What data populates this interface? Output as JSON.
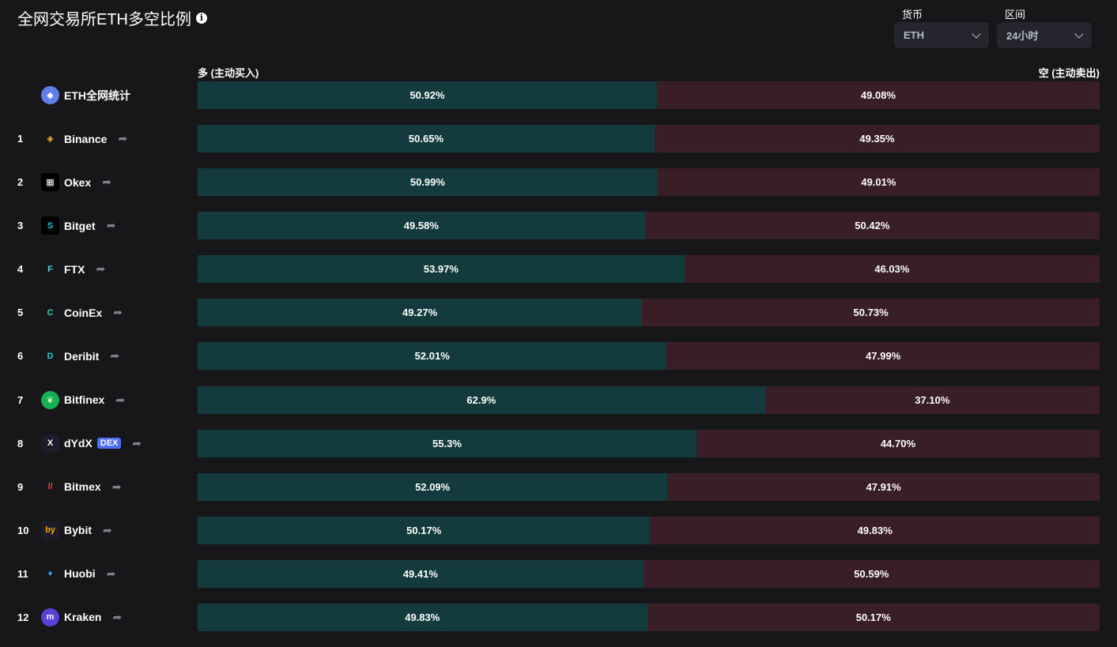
{
  "page": {
    "title": "全网交易所ETH多空比例",
    "info_icon": "info-icon"
  },
  "filters": {
    "coin": {
      "label": "货币",
      "value": "ETH"
    },
    "period": {
      "label": "区间",
      "value": "24小时"
    }
  },
  "header": {
    "long_label": "多 (主动买入)",
    "short_label": "空 (主动卖出)"
  },
  "colors": {
    "long_bar": "#133b3d",
    "short_bar": "#391d27",
    "background": "#17171a"
  },
  "rows": [
    {
      "rank": "",
      "name": "ETH全网统计",
      "icon": "eth-icon",
      "long": 50.92,
      "long_text": "50.92%",
      "short_text": "49.08%",
      "share": false,
      "dex": ""
    },
    {
      "rank": "1",
      "name": "Binance",
      "icon": "binance-icon",
      "long": 50.65,
      "long_text": "50.65%",
      "short_text": "49.35%",
      "share": true,
      "dex": ""
    },
    {
      "rank": "2",
      "name": "Okex",
      "icon": "okex-icon",
      "long": 50.99,
      "long_text": "50.99%",
      "short_text": "49.01%",
      "share": true,
      "dex": ""
    },
    {
      "rank": "3",
      "name": "Bitget",
      "icon": "bitget-icon",
      "long": 49.58,
      "long_text": "49.58%",
      "short_text": "50.42%",
      "share": true,
      "dex": ""
    },
    {
      "rank": "4",
      "name": "FTX",
      "icon": "ftx-icon",
      "long": 53.97,
      "long_text": "53.97%",
      "short_text": "46.03%",
      "share": true,
      "dex": ""
    },
    {
      "rank": "5",
      "name": "CoinEx",
      "icon": "coinex-icon",
      "long": 49.27,
      "long_text": "49.27%",
      "short_text": "50.73%",
      "share": true,
      "dex": ""
    },
    {
      "rank": "6",
      "name": "Deribit",
      "icon": "deribit-icon",
      "long": 52.01,
      "long_text": "52.01%",
      "short_text": "47.99%",
      "share": true,
      "dex": ""
    },
    {
      "rank": "7",
      "name": "Bitfinex",
      "icon": "bitfinex-icon",
      "long": 62.9,
      "long_text": "62.9%",
      "short_text": "37.10%",
      "share": true,
      "dex": ""
    },
    {
      "rank": "8",
      "name": "dYdX",
      "icon": "dydx-icon",
      "long": 55.3,
      "long_text": "55.3%",
      "short_text": "44.70%",
      "share": true,
      "dex": "DEX"
    },
    {
      "rank": "9",
      "name": "Bitmex",
      "icon": "bitmex-icon",
      "long": 52.09,
      "long_text": "52.09%",
      "short_text": "47.91%",
      "share": true,
      "dex": ""
    },
    {
      "rank": "10",
      "name": "Bybit",
      "icon": "bybit-icon",
      "long": 50.17,
      "long_text": "50.17%",
      "short_text": "49.83%",
      "share": true,
      "dex": ""
    },
    {
      "rank": "11",
      "name": "Huobi",
      "icon": "huobi-icon",
      "long": 49.41,
      "long_text": "49.41%",
      "short_text": "50.59%",
      "share": true,
      "dex": ""
    },
    {
      "rank": "12",
      "name": "Kraken",
      "icon": "kraken-icon",
      "long": 49.83,
      "long_text": "49.83%",
      "short_text": "50.17%",
      "share": true,
      "dex": ""
    }
  ]
}
